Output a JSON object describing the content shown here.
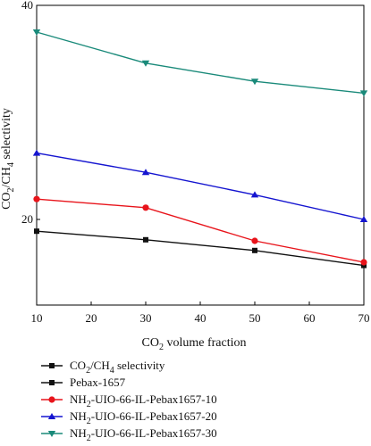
{
  "chart_data": {
    "type": "line",
    "title": "",
    "xlabel": "CO2 volume fraction",
    "xlabel_parts": {
      "a": "CO",
      "sub": "2",
      "b": " volume fraction"
    },
    "ylabel": "CO2/CH4 selectivity",
    "ylabel_parts": {
      "a": "CO",
      "sub1": "2",
      "b": "/CH",
      "sub2": "4",
      "c": " selectivity"
    },
    "xlim": [
      10,
      70
    ],
    "ylim": [
      12,
      40
    ],
    "x_ticks": [
      10,
      20,
      30,
      40,
      50,
      60,
      70
    ],
    "y_ticks": [
      20,
      40
    ],
    "grid": false,
    "legend_position": "bottom",
    "x": [
      10,
      30,
      50,
      70
    ],
    "legend_entries": [
      {
        "parts": {
          "a": "CO",
          "sub1": "2",
          "b": "/CH",
          "sub2": "4",
          "c": " selectivity"
        },
        "color": "#111111",
        "marker": "square"
      },
      {
        "parts": {
          "a": "Pebax-1657"
        },
        "color": "#111111",
        "marker": "square"
      },
      {
        "parts": {
          "a": "NH",
          "sub1": "2",
          "b": "-UIO-66-IL-Pebax1657-10"
        },
        "color": "#e8141b",
        "marker": "circle"
      },
      {
        "parts": {
          "a": "NH",
          "sub1": "2",
          "b": "-UIO-66-IL-Pebax1657-20"
        },
        "color": "#1515d0",
        "marker": "triangle-up"
      },
      {
        "parts": {
          "a": "NH",
          "sub1": "2",
          "b": "-UIO-66-IL-Pebax1657-30"
        },
        "color": "#1a8a7a",
        "marker": "triangle-down"
      }
    ],
    "series": [
      {
        "color": "#111111",
        "marker": "square",
        "values": [
          18.9,
          18.1,
          17.1,
          15.7
        ]
      },
      {
        "color": "#e8141b",
        "marker": "circle",
        "values": [
          21.9,
          21.1,
          18.0,
          16.0
        ]
      },
      {
        "color": "#1515d0",
        "marker": "triangle-up",
        "values": [
          26.2,
          24.4,
          22.3,
          20.0
        ]
      },
      {
        "color": "#1a8a7a",
        "marker": "triangle-down",
        "values": [
          37.5,
          34.6,
          32.9,
          31.8
        ]
      }
    ]
  }
}
